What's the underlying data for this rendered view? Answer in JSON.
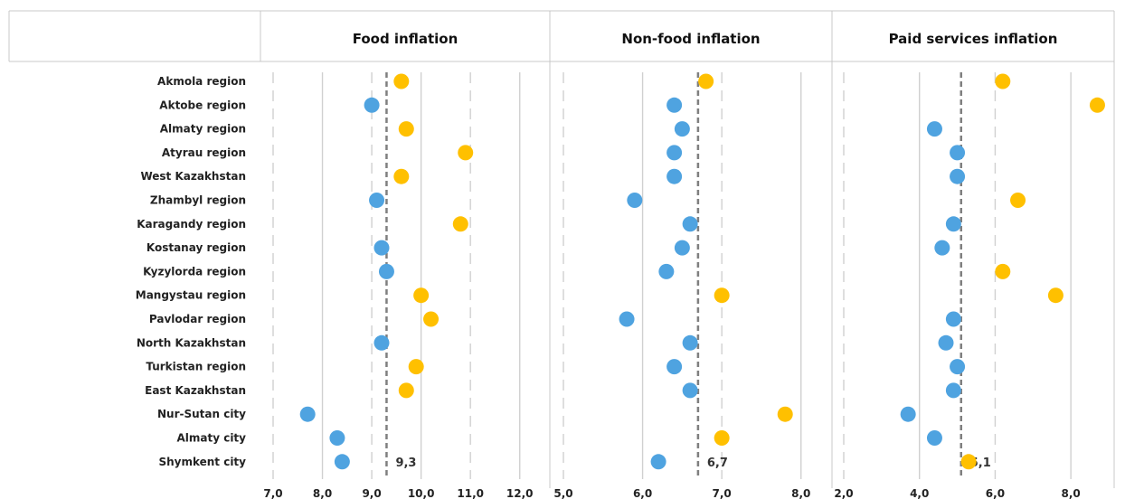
{
  "chart_data": {
    "type": "scatter",
    "colors": {
      "above": "#FFC000",
      "below": "#4FA3E0",
      "reference_line": "#7f7f7f",
      "grid": "#d0d0d0",
      "divider": "#c8c8c8"
    },
    "regions": [
      "Akmola region",
      "Aktobe region",
      "Almaty region",
      "Atyrau region",
      "West Kazakhstan",
      "Zhambyl region",
      "Karagandy region",
      "Kostanay region",
      "Kyzylorda region",
      "Mangystau region",
      "Pavlodar region",
      "North Kazakhstan",
      "Turkistan region",
      "East Kazakhstan",
      "Nur-Sutan city",
      "Almaty city",
      "Shymkent city"
    ],
    "panels": [
      {
        "title": "Food inflation",
        "xlim": [
          7.0,
          12.5
        ],
        "ticks": [
          7.0,
          8.0,
          9.0,
          10.0,
          11.0,
          12.0
        ],
        "tick_labels": [
          "7,0",
          "8,0",
          "9,0",
          "10,0",
          "11,0",
          "12,0"
        ],
        "reference": 9.3,
        "reference_label": "9,3",
        "values": [
          9.6,
          9.0,
          9.7,
          10.9,
          9.6,
          9.1,
          10.8,
          9.2,
          9.3,
          10.0,
          10.2,
          9.2,
          9.9,
          9.7,
          7.7,
          8.3,
          8.4
        ]
      },
      {
        "title": "Non-food inflation",
        "xlim": [
          5.0,
          8.3
        ],
        "ticks": [
          5.0,
          6.0,
          7.0,
          8.0
        ],
        "tick_labels": [
          "5,0",
          "6,0",
          "7,0",
          "8,0"
        ],
        "reference": 6.7,
        "reference_label": "6,7",
        "values": [
          6.8,
          6.4,
          6.5,
          6.4,
          6.4,
          5.9,
          6.6,
          6.5,
          6.3,
          7.0,
          5.8,
          6.6,
          6.4,
          6.6,
          7.8,
          7.0,
          6.2
        ]
      },
      {
        "title": "Paid services inflation",
        "xlim": [
          2.0,
          9.0
        ],
        "ticks": [
          2.0,
          4.0,
          6.0,
          8.0
        ],
        "tick_labels": [
          "2,0",
          "4,0",
          "6,0",
          "8,0"
        ],
        "reference": 5.1,
        "reference_label": "5,1",
        "values": [
          6.2,
          8.7,
          4.4,
          5.0,
          5.0,
          6.6,
          4.9,
          4.6,
          6.2,
          7.6,
          4.9,
          4.7,
          5.0,
          4.9,
          3.7,
          4.4,
          5.3
        ]
      }
    ]
  }
}
